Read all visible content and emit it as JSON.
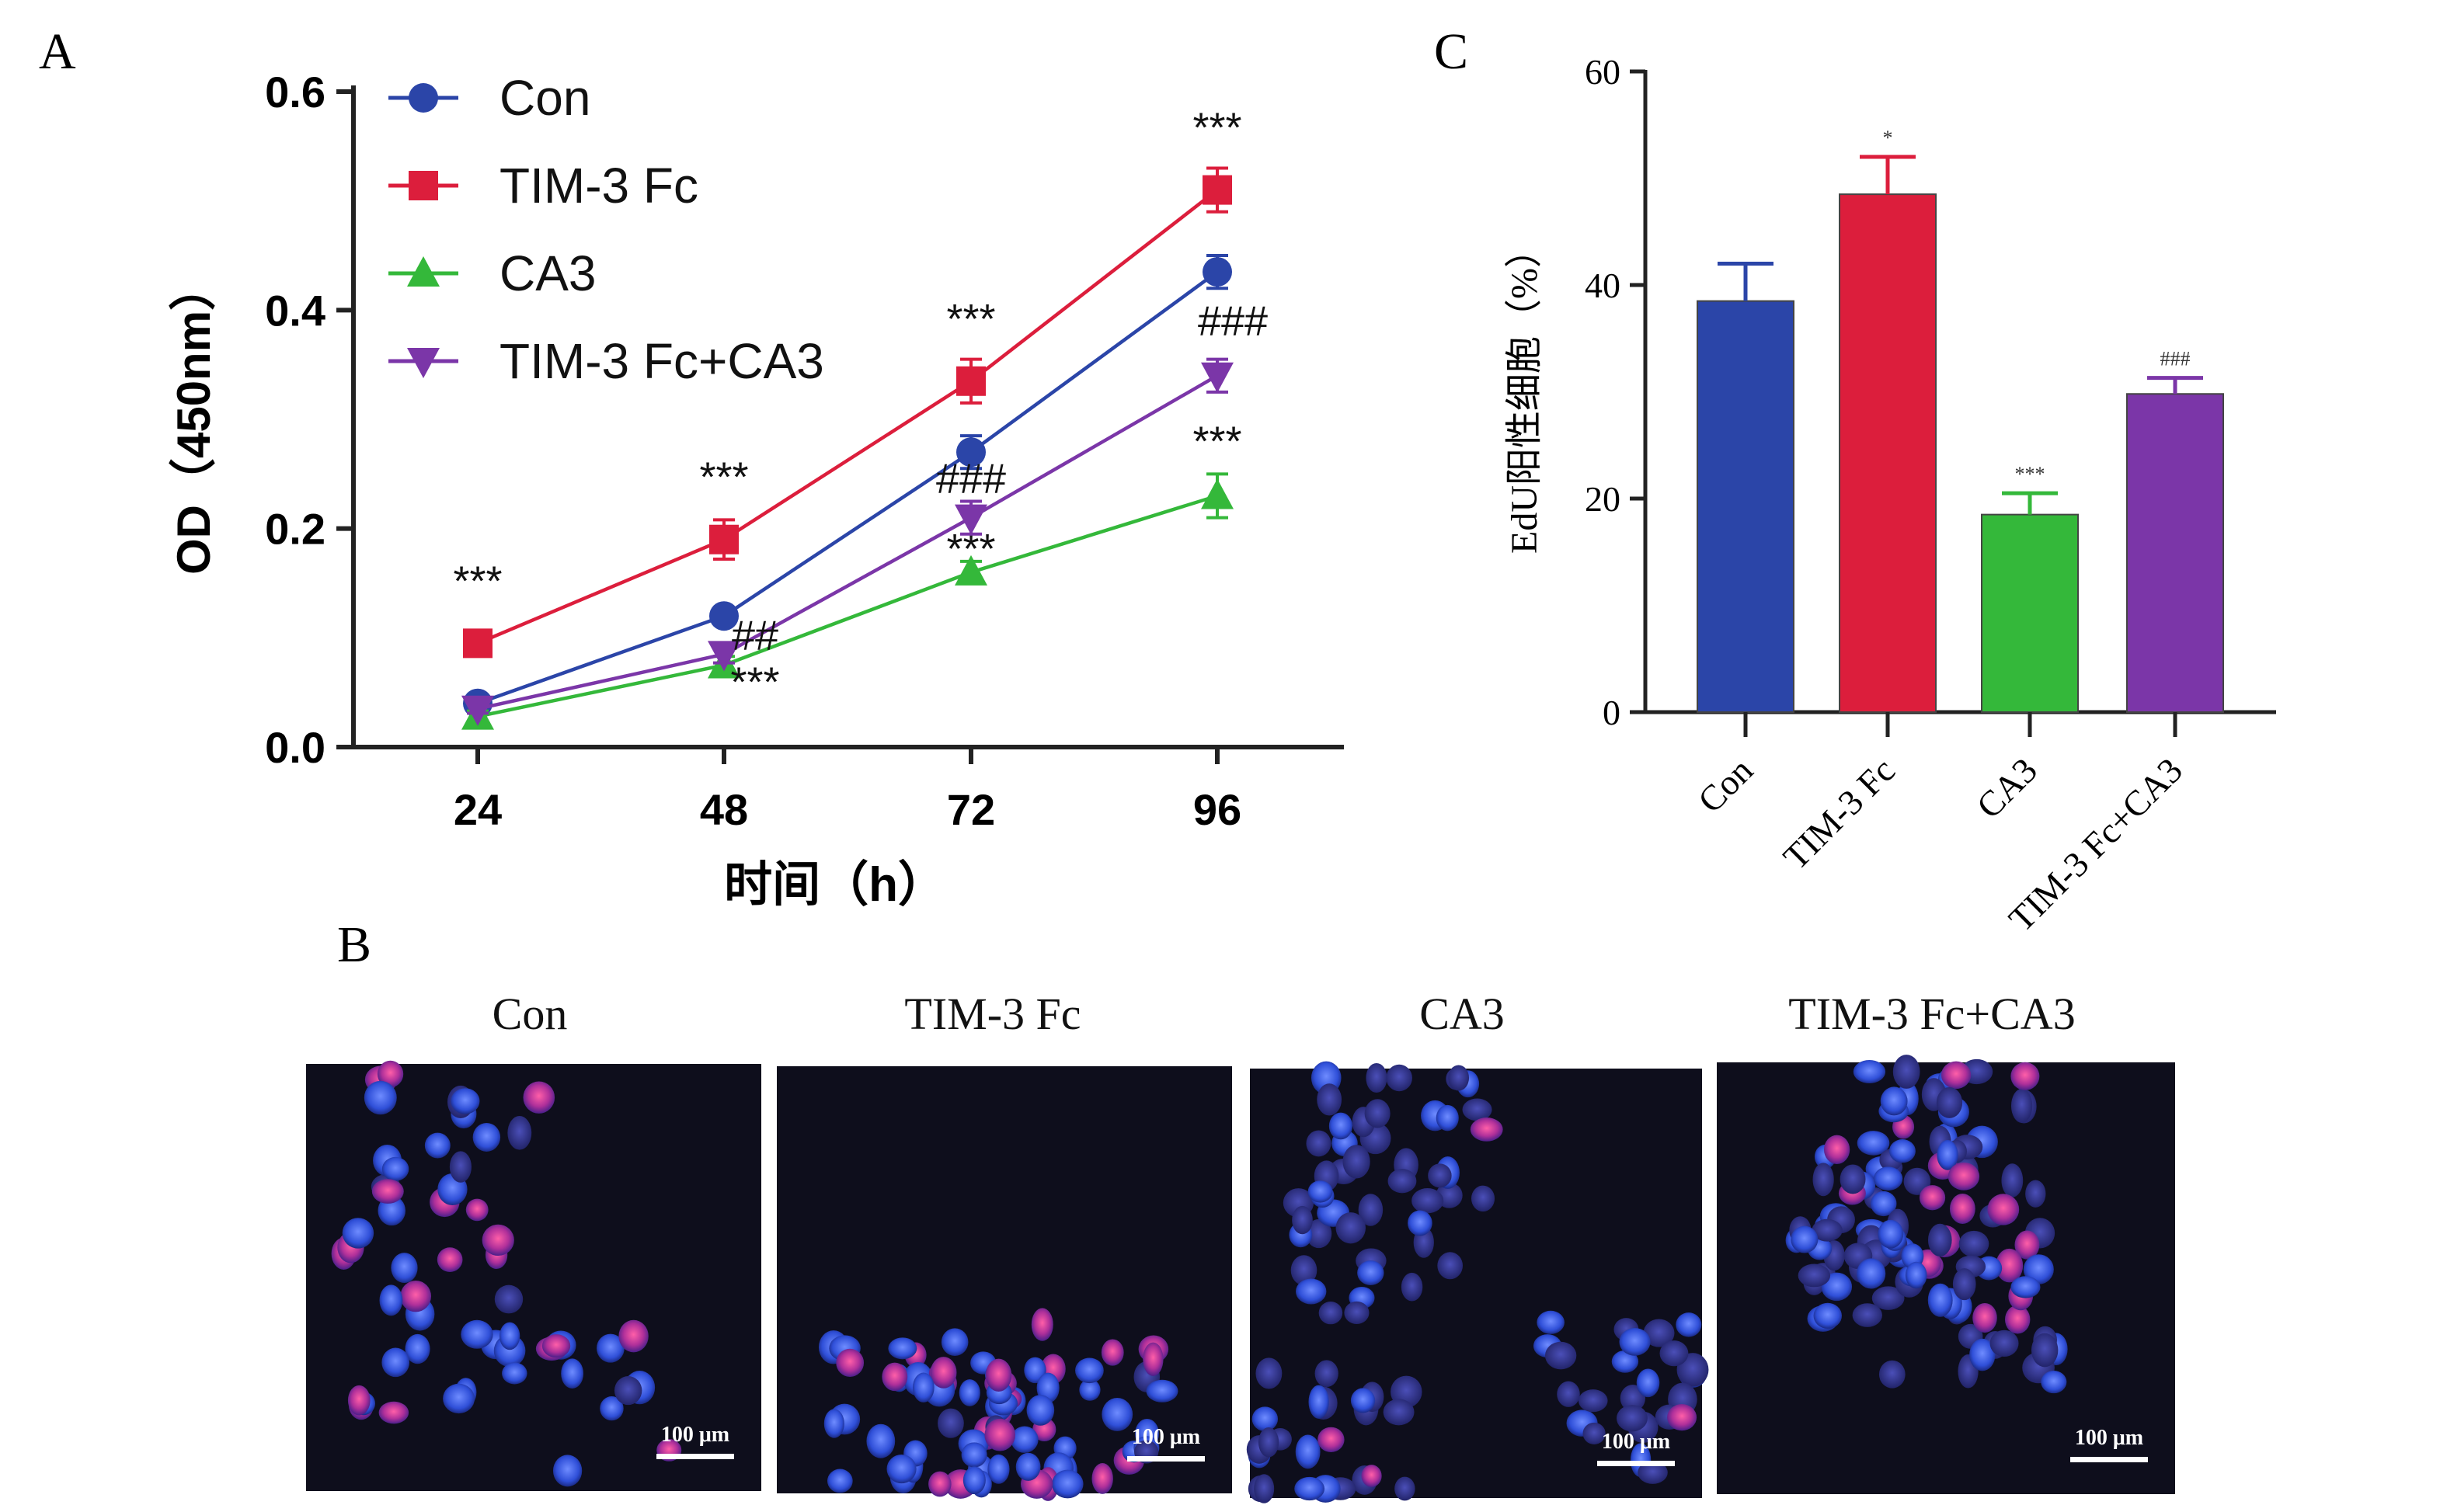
{
  "colors": {
    "con": "#2b45a8",
    "tim3fc": "#dc1e3c",
    "ca3": "#34b83a",
    "combo": "#7b36a8",
    "axis": "#222222",
    "micro_bg": "#0e0e1c"
  },
  "panel_labels": {
    "a": "A",
    "b": "B",
    "c": "C"
  },
  "chart_data": [
    {
      "id": "A",
      "type": "line",
      "xlabel": "时间（h）",
      "ylabel": "OD（450nm）",
      "x": [
        24,
        48,
        72,
        96
      ],
      "xticks": [
        "24",
        "48",
        "72",
        "96"
      ],
      "ylim": [
        0,
        0.6
      ],
      "yticks": [
        "0.0",
        "0.2",
        "0.4",
        "0.6"
      ],
      "legend_position": "top-left",
      "series": [
        {
          "name": "Con",
          "key": "con",
          "marker": "circle",
          "values": [
            0.04,
            0.12,
            0.27,
            0.435
          ],
          "errors": [
            0.005,
            0.006,
            0.015,
            0.015
          ],
          "annotations": [
            "",
            "",
            "",
            ""
          ]
        },
        {
          "name": "TIM-3 Fc",
          "key": "tim3fc",
          "marker": "square",
          "values": [
            0.095,
            0.19,
            0.335,
            0.51
          ],
          "errors": [
            0.01,
            0.018,
            0.02,
            0.02
          ],
          "annotations": [
            "***",
            "***",
            "***",
            "***"
          ]
        },
        {
          "name": "CA3",
          "key": "ca3",
          "marker": "triangle-up",
          "values": [
            0.028,
            0.075,
            0.16,
            0.23
          ],
          "errors": [
            0.005,
            0.008,
            0.01,
            0.02
          ],
          "annotations": [
            "",
            "***",
            "***",
            "***"
          ]
        },
        {
          "name": "TIM-3 Fc+CA3",
          "key": "combo",
          "marker": "triangle-down",
          "values": [
            0.035,
            0.085,
            0.21,
            0.34
          ],
          "errors": [
            0.004,
            0.008,
            0.015,
            0.015
          ],
          "annotations": [
            "",
            "##",
            "###",
            "###"
          ]
        }
      ]
    },
    {
      "id": "C",
      "type": "bar",
      "ylabel": "EdU阳性细胞（%）",
      "categories": [
        "Con",
        "TIM-3 Fc",
        "CA3",
        "TIM-3 Fc+CA3"
      ],
      "values": [
        38.5,
        48.5,
        18.5,
        29.8
      ],
      "errors": [
        3.5,
        3.5,
        2.0,
        1.5
      ],
      "annotations": [
        "",
        "*",
        "***",
        "###"
      ],
      "ylim": [
        0,
        60
      ],
      "yticks": [
        "0",
        "20",
        "40",
        "60"
      ]
    }
  ],
  "panel_b": {
    "titles": [
      "Con",
      "TIM-3 Fc",
      "CA3",
      "TIM-3 Fc+CA3"
    ],
    "scale_bar": "100 μm"
  }
}
